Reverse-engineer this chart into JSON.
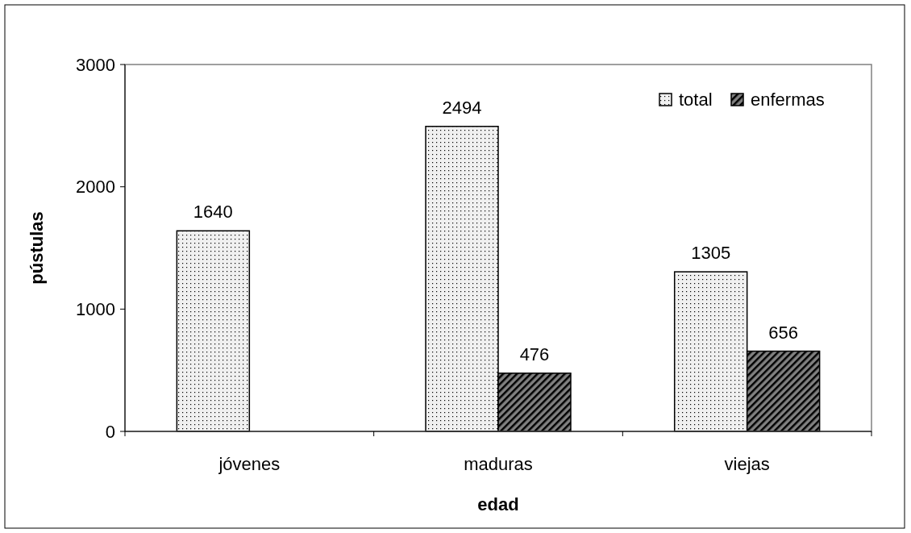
{
  "chart_data": {
    "type": "bar",
    "xlabel": "edad",
    "ylabel": "pústulas",
    "categories": [
      "jóvenes",
      "maduras",
      "viejas"
    ],
    "series": [
      {
        "name": "total",
        "color": "#f0f0f0",
        "values": [
          1640,
          2494,
          1305
        ]
      },
      {
        "name": "enfermas",
        "color": "#808080",
        "values": [
          null,
          476,
          656
        ]
      }
    ],
    "ylim": [
      0,
      3000
    ],
    "yticks": [
      0,
      1000,
      2000,
      3000
    ],
    "data_labels": true,
    "legend": "top right",
    "grid": false
  }
}
